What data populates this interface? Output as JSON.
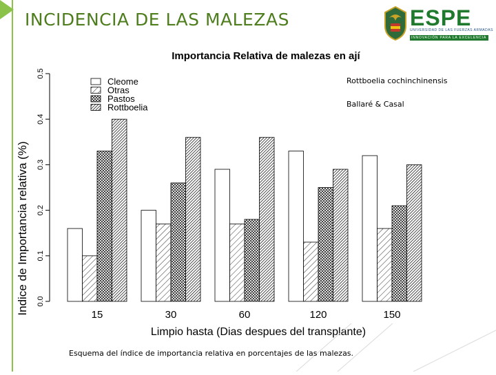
{
  "slide": {
    "title": "INCIDENCIA DE LAS MALEZAS",
    "caption": "Esquema del índice de importancia relativa en porcentajes de las malezas."
  },
  "logo": {
    "wordmark": "ESPE",
    "line1": "UNIVERSIDAD DE LAS FUERZAS ARMADAS",
    "line2": "INNOVACIÓN PARA LA EXCELENCIA"
  },
  "colors": {
    "accent_green": "#4e7d1e",
    "bar_green": "#8bc34a",
    "espe_green": "#1f7a2e",
    "espe_blue": "#1f4f8a"
  },
  "chart_data": {
    "type": "bar",
    "title": "Importancia Relativa de malezas en ají",
    "xlabel": "Limpio hasta (Dias despues del transplante)",
    "ylabel": "Indice de Importancia relativa (%)",
    "categories": [
      "15",
      "30",
      "60",
      "120",
      "150"
    ],
    "yticks": [
      "0.0",
      "0.1",
      "0.2",
      "0.3",
      "0.4",
      "0.5"
    ],
    "ylim": [
      0,
      0.5
    ],
    "grid": false,
    "legend_position": "top-left",
    "series": [
      {
        "name": "Cleome",
        "pattern": "white",
        "values": [
          0.16,
          0.2,
          0.29,
          0.33,
          0.32
        ]
      },
      {
        "name": "Otras",
        "pattern": "sparse-hatch",
        "values": [
          0.1,
          0.17,
          0.17,
          0.13,
          0.16
        ]
      },
      {
        "name": "Pastos",
        "pattern": "cross-hatch",
        "values": [
          0.33,
          0.26,
          0.18,
          0.25,
          0.21
        ]
      },
      {
        "name": "Rottboelia",
        "pattern": "dense-hatch",
        "values": [
          0.4,
          0.36,
          0.36,
          0.29,
          0.3
        ]
      }
    ],
    "annotations": [
      "Rottboelia cochinchinensis",
      "Ballaré & Casal"
    ]
  }
}
